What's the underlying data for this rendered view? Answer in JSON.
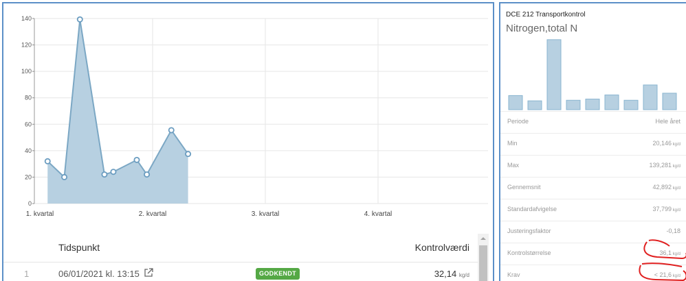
{
  "chart_data": [
    {
      "type": "area",
      "x_categories": [
        "1. kvartal",
        "2. kvartal",
        "3. kvartal",
        "4. kvartal"
      ],
      "ylim": [
        0,
        140
      ],
      "yticks": [
        0,
        20,
        40,
        60,
        80,
        100,
        120,
        140
      ],
      "grid": true,
      "points": [
        {
          "x": 0.02,
          "y": 32
        },
        {
          "x": 0.17,
          "y": 20
        },
        {
          "x": 0.31,
          "y": 139.3
        },
        {
          "x": 0.53,
          "y": 22
        },
        {
          "x": 0.61,
          "y": 24
        },
        {
          "x": 0.82,
          "y": 33
        },
        {
          "x": 0.91,
          "y": 22
        },
        {
          "x": 1.13,
          "y": 55.5
        },
        {
          "x": 1.28,
          "y": 37.5
        }
      ],
      "x_domain": [
        0,
        4
      ],
      "colors": {
        "fill": "#b7d0e1",
        "line": "#7ba7c4",
        "marker_stroke": "#6a9cc0"
      }
    },
    {
      "type": "bar",
      "values": [
        24,
        15,
        119,
        16,
        18,
        25,
        16,
        42,
        28
      ],
      "ylim": [
        0,
        120
      ],
      "colors": {
        "fill": "#b7d0e1",
        "stroke": "#8ab5d0"
      }
    }
  ],
  "table": {
    "header": {
      "time": "Tidspunkt",
      "value": "Kontrolværdi"
    },
    "rows": [
      {
        "index": "1",
        "time": "06/01/2021 kl. 13:15",
        "status": "GODKENDT",
        "value": "32,14",
        "unit": "kg/d"
      }
    ]
  },
  "right_panel": {
    "title": "DCE 212 Transportkontrol",
    "subtitle": "Nitrogen,total N",
    "stats": [
      {
        "label": "Periode",
        "value": "Hele året",
        "unit": ""
      },
      {
        "label": "Min",
        "value": "20,146",
        "unit": "kg/d"
      },
      {
        "label": "Max",
        "value": "139,281",
        "unit": "kg/d"
      },
      {
        "label": "Gennemsnit",
        "value": "42,892",
        "unit": "kg/d"
      },
      {
        "label": "Standardafvigelse",
        "value": "37,799",
        "unit": "kg/d"
      },
      {
        "label": "Justeringsfaktor",
        "value": "-0,18",
        "unit": ""
      },
      {
        "label": "Kontrolstørrelse",
        "value": "36,1",
        "unit": "kg/d"
      },
      {
        "label": "Krav",
        "value": "< 21,6",
        "unit": "kg/d"
      }
    ]
  },
  "colors": {
    "panel_border": "#5b8fc7",
    "badge_green": "#55a845",
    "annotation_red": "#e02020"
  }
}
